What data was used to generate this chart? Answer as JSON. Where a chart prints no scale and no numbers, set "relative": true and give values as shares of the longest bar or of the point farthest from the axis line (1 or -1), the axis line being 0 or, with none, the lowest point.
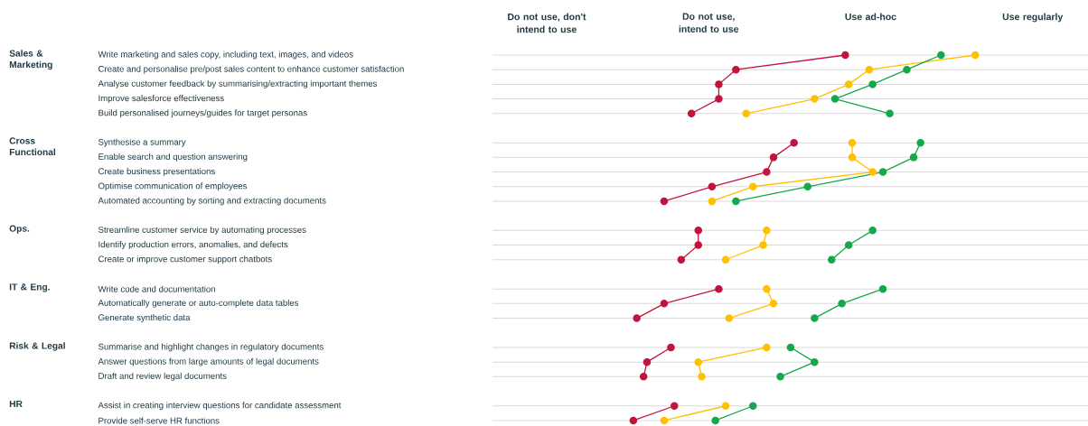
{
  "chart_data": {
    "type": "line",
    "categories": [
      "Write marketing and sales copy, including text, images, and videos",
      "Create and personalise pre/post sales content to enhance customer satisfaction",
      "Analyse customer feedback by summarising/extracting important themes",
      "Improve salesforce effectiveness",
      "Build personalised journeys/guides for target personas",
      null,
      "Synthesise a summary",
      "Enable search and question answering",
      "Create business presentations",
      "Optimise communication of employees",
      "Automated accounting by sorting and extracting documents",
      null,
      "Streamline customer service by automating processes",
      "Identify production errors, anomalies, and defects",
      "Create or improve customer support chatbots",
      null,
      "Write code and documentation",
      "Automatically generate or auto-complete data tables",
      "Generate synthetic data",
      null,
      "Summarise and highlight changes in regulatory documents",
      "Answer questions from large amounts of legal documents",
      "Draft and review legal documents",
      null,
      "Assist in creating interview questions for candidate assessment",
      "Provide self-serve HR functions"
    ],
    "orientation": "horizontal",
    "relative": true,
    "series": [
      {
        "color": "#c0143c",
        "values": [
          0.62,
          0.3,
          0.25,
          0.25,
          0.17,
          null,
          0.47,
          0.41,
          0.39,
          0.23,
          0.09,
          null,
          0.19,
          0.19,
          0.14,
          null,
          0.25,
          0.09,
          0.01,
          null,
          0.11,
          0.04,
          0.03,
          null,
          0.12,
          0
        ]
      },
      {
        "color": "#ffc000",
        "values": [
          1.0,
          0.69,
          0.63,
          0.53,
          0.33,
          null,
          0.64,
          0.64,
          0.7,
          0.35,
          0.23,
          null,
          0.39,
          0.38,
          0.27,
          null,
          0.39,
          0.41,
          0.28,
          null,
          0.39,
          0.19,
          0.2,
          null,
          0.27,
          0.09
        ]
      },
      {
        "color": "#13a84a",
        "values": [
          0.9,
          0.8,
          0.7,
          0.59,
          0.75,
          null,
          0.84,
          0.82,
          0.73,
          0.51,
          0.3,
          null,
          0.7,
          0.63,
          0.58,
          null,
          0.73,
          0.61,
          0.53,
          null,
          0.46,
          0.53,
          0.43,
          null,
          0.35,
          0.24
        ]
      }
    ],
    "grid": "y",
    "marker": "circle",
    "line_style": "solid",
    "annotations": [
      "Do not use, don't intend to use",
      "Do not use, intend to use",
      "Use ad-hoc",
      "Use regularly",
      "Sales & Marketing",
      "Cross Functional",
      "Ops.",
      "IT & Eng.",
      "Risk & Legal",
      "HR"
    ]
  }
}
